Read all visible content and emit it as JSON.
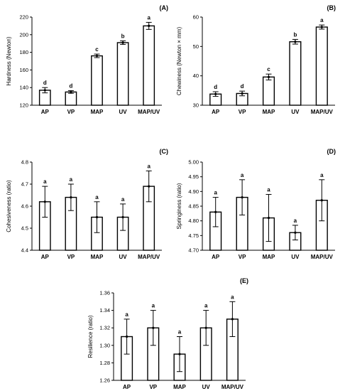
{
  "chart_data": [
    {
      "type": "bar",
      "panel_label": "(A)",
      "ylabel": "Hardness (Newton)",
      "categories": [
        "AP",
        "VP",
        "MAP",
        "UV",
        "MAP/UV"
      ],
      "values": [
        137,
        135,
        176,
        191,
        210
      ],
      "errors": [
        3,
        1.5,
        2,
        2,
        4
      ],
      "letters": [
        "d",
        "d",
        "c",
        "b",
        "a"
      ],
      "ylim": [
        120,
        220
      ],
      "yticks": [
        "120",
        "140",
        "160",
        "180",
        "200",
        "220"
      ]
    },
    {
      "type": "bar",
      "panel_label": "(B)",
      "ylabel": "Chewiness (Newton × mm)",
      "categories": [
        "AP",
        "VP",
        "MAP",
        "UV",
        "MAP/UV"
      ],
      "values": [
        33.8,
        34.0,
        39.6,
        51.6,
        56.6
      ],
      "errors": [
        0.8,
        0.8,
        1.0,
        0.8,
        0.7
      ],
      "letters": [
        "d",
        "d",
        "c",
        "b",
        "a"
      ],
      "ylim": [
        30,
        60
      ],
      "yticks": [
        "30",
        "40",
        "50",
        "60"
      ]
    },
    {
      "type": "bar",
      "panel_label": "(C)",
      "ylabel": "Cohesiveness (ratio)",
      "categories": [
        "AP",
        "VP",
        "MAP",
        "UV",
        "MAP/UV"
      ],
      "values": [
        4.62,
        4.64,
        4.55,
        4.55,
        4.69
      ],
      "errors": [
        0.07,
        0.06,
        0.07,
        0.06,
        0.07
      ],
      "letters": [
        "a",
        "a",
        "a",
        "a",
        "a"
      ],
      "ylim": [
        4.4,
        4.8
      ],
      "yticks": [
        "4.4",
        "4.5",
        "4.6",
        "4.7",
        "4.8"
      ]
    },
    {
      "type": "bar",
      "panel_label": "(D)",
      "ylabel": "Springiness (ratio)",
      "categories": [
        "AP",
        "VP",
        "MAP",
        "UV",
        "MAP/UV"
      ],
      "values": [
        4.83,
        4.88,
        4.81,
        4.76,
        4.87
      ],
      "errors": [
        0.05,
        0.06,
        0.08,
        0.025,
        0.07
      ],
      "letters": [
        "a",
        "a",
        "a",
        "a",
        "a"
      ],
      "ylim": [
        4.7,
        5.0
      ],
      "yticks": [
        "4.70",
        "4.75",
        "4.80",
        "4.85",
        "4.90",
        "4.95",
        "5.00"
      ]
    },
    {
      "type": "bar",
      "panel_label": "(E)",
      "ylabel": "Resilience (ratio)",
      "categories": [
        "AP",
        "VP",
        "MAP",
        "UV",
        "MAP/UV"
      ],
      "values": [
        1.31,
        1.32,
        1.29,
        1.32,
        1.33
      ],
      "errors": [
        0.02,
        0.02,
        0.02,
        0.02,
        0.02
      ],
      "letters": [
        "a",
        "a",
        "a",
        "a",
        "a"
      ],
      "ylim": [
        1.26,
        1.36
      ],
      "yticks": [
        "1.26",
        "1.28",
        "1.30",
        "1.32",
        "1.34",
        "1.36"
      ]
    }
  ]
}
